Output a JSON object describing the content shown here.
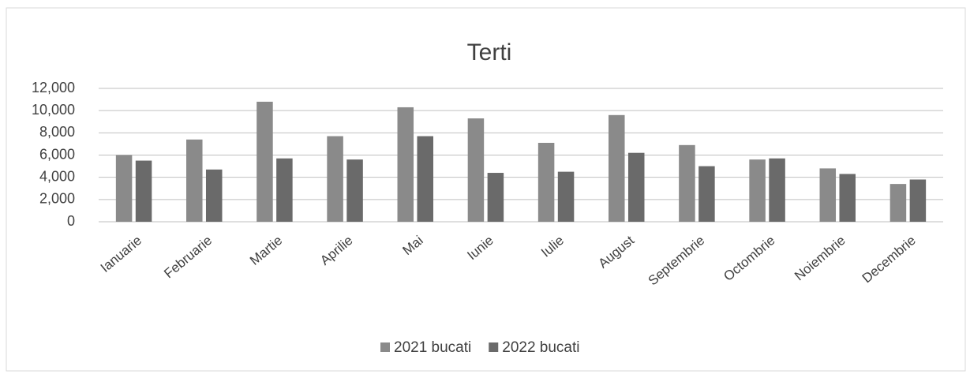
{
  "chart_data": {
    "type": "bar",
    "title": "Terti",
    "categories": [
      "Ianuarie",
      "Februarie",
      "Martie",
      "Aprilie",
      "Mai",
      "Iunie",
      "Iulie",
      "August",
      "Septembrie",
      "Octombrie",
      "Noiembrie",
      "Decembrie"
    ],
    "series": [
      {
        "name": "2021 bucati",
        "color": "#8a8a8a",
        "values": [
          6000,
          7400,
          10800,
          7700,
          10300,
          9300,
          7100,
          9600,
          6900,
          5600,
          4800,
          3400
        ]
      },
      {
        "name": "2022 bucati",
        "color": "#6a6a6a",
        "values": [
          5500,
          4700,
          5700,
          5600,
          7700,
          4400,
          4500,
          6200,
          5000,
          5700,
          4300,
          3800
        ]
      }
    ],
    "ylim": [
      0,
      12000
    ],
    "yticks": [
      0,
      {
        "value": 2000,
        "label": "2,000"
      },
      {
        "value": 4000,
        "label": "4,000"
      },
      {
        "value": 6000,
        "label": "6,000"
      },
      {
        "value": 8000,
        "label": "8,000"
      },
      {
        "value": 10000,
        "label": "10,000"
      },
      {
        "value": 12000,
        "label": "12,000"
      }
    ],
    "grid": true,
    "legend": "bottom"
  }
}
